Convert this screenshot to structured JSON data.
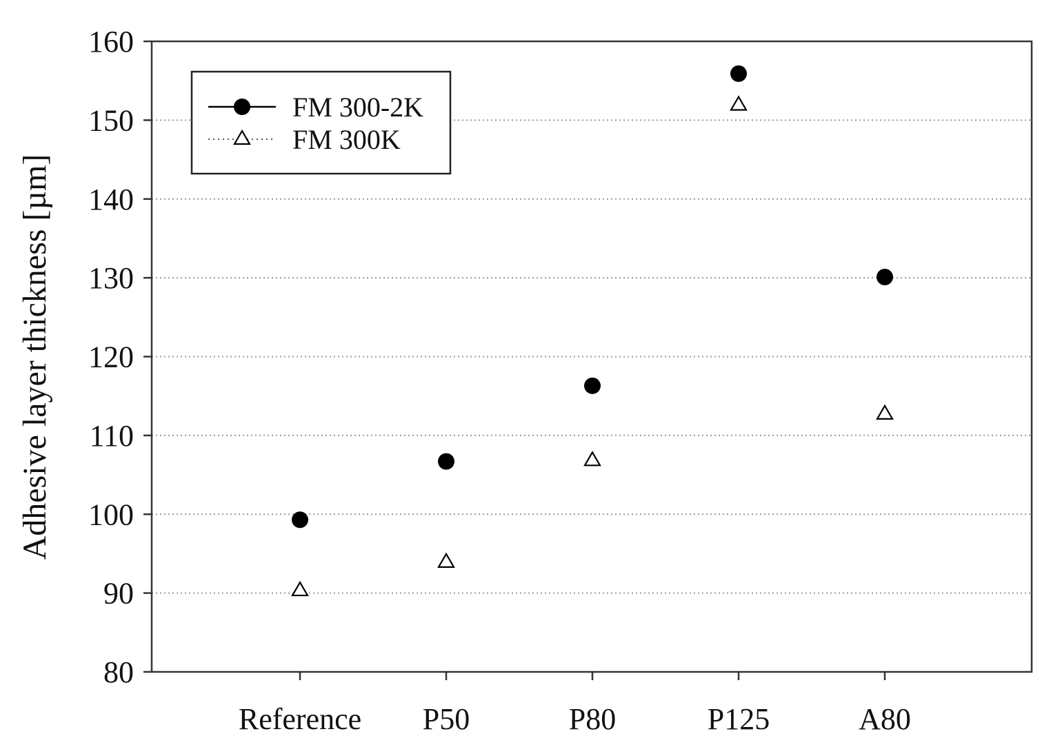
{
  "chart_data": {
    "type": "scatter",
    "title": "",
    "xlabel": "",
    "ylabel": "Adhesive layer thickness [µm]",
    "categories": [
      "Reference",
      "P50",
      "P80",
      "P125",
      "A80"
    ],
    "ylim": [
      80,
      160
    ],
    "yticks": [
      80,
      90,
      100,
      110,
      120,
      130,
      140,
      150,
      160
    ],
    "grid": "horizontal-dotted",
    "legend_position": "top-left",
    "series": [
      {
        "name": "FM 300-2K",
        "marker": "filled-circle",
        "line": "solid",
        "color": "#000000",
        "values": [
          99.3,
          106.7,
          116.3,
          155.9,
          130.1
        ]
      },
      {
        "name": "FM 300K",
        "marker": "open-triangle",
        "line": "dotted",
        "color": "#000000",
        "values": [
          90.4,
          94.0,
          106.9,
          152.0,
          112.8
        ]
      }
    ]
  }
}
